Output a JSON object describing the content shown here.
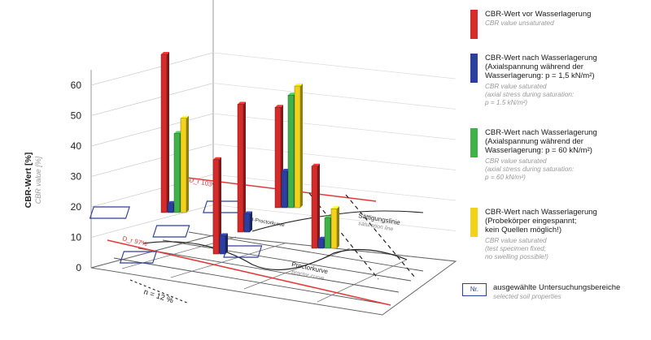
{
  "chart_data": {
    "type": "bar",
    "y_axis": {
      "label": "CBR-Wert [%]",
      "label_en": "CBR value [%]",
      "ticks": [
        "0",
        "10",
        "20",
        "30",
        "40",
        "50",
        "60"
      ],
      "range": [
        0,
        60
      ]
    },
    "series": [
      {
        "name": "CBR-Wert vor Wasserlagerung",
        "color": "#d62b2b"
      },
      {
        "name": "CBR-Wert nach Wasserlagerung (p = 1,5 kN/m²)",
        "color": "#2c3fa0"
      },
      {
        "name": "CBR-Wert nach Wasserlagerung (p = 60 kN/m²)",
        "color": "#3fb34a"
      },
      {
        "name": "CBR-Wert nach Wasserlagerung (Probekörper eingespannt)",
        "color": "#f2d21a"
      }
    ],
    "groups": [
      {
        "id": "left",
        "values": [
          52,
          3,
          26,
          31
        ]
      },
      {
        "id": "front",
        "values": [
          31,
          6,
          null,
          null
        ]
      },
      {
        "id": "middle",
        "values": [
          42,
          6,
          null,
          null
        ]
      },
      {
        "id": "back",
        "values": [
          33,
          12,
          37,
          40
        ]
      },
      {
        "id": "right",
        "values": [
          27,
          3,
          10,
          13
        ]
      }
    ],
    "annotations": [
      {
        "text": "n = 12 %"
      },
      {
        "text": "Proctorkurve"
      },
      {
        "text": "proctor curve"
      },
      {
        "text": "Sättigungslinie"
      },
      {
        "text": "saturation line"
      },
      {
        "text": "D_r 97%"
      },
      {
        "text": "D_r 103%"
      },
      {
        "text": "Sand-Proctorkurve"
      }
    ]
  },
  "legend": {
    "items": [
      {
        "de": "CBR-Wert vor Wasserlagerung",
        "en": "CBR value unsaturated",
        "color": "#d62b2b"
      },
      {
        "de": "CBR-Wert nach Wasserlagerung\n(Axialspannung während der\nWasserlagerung: p = 1,5 kN/m²)",
        "en": "CBR value saturated\n(axial stress during saturation:\np = 1.5 kN/m²)",
        "color": "#2c3fa0"
      },
      {
        "de": "CBR-Wert nach Wasserlagerung\n(Axialspannung während der\nWasserlagerung: p = 60 kN/m²)",
        "en": "CBR value saturated\n(axial stress during saturation:\np = 60 kN/m²)",
        "color": "#3fb34a"
      },
      {
        "de": "CBR-Wert nach Wasserlagerung\n(Probekörper eingespannt;\nkein Quellen möglich!)",
        "en": "CBR value saturated\n(test specimen fixed;\nno swelling possible!)",
        "color": "#f2d21a"
      }
    ],
    "nr": {
      "box": "Nr.",
      "de": "ausgewählte Untersuchungsbereiche",
      "en": "selected soil properties"
    }
  }
}
